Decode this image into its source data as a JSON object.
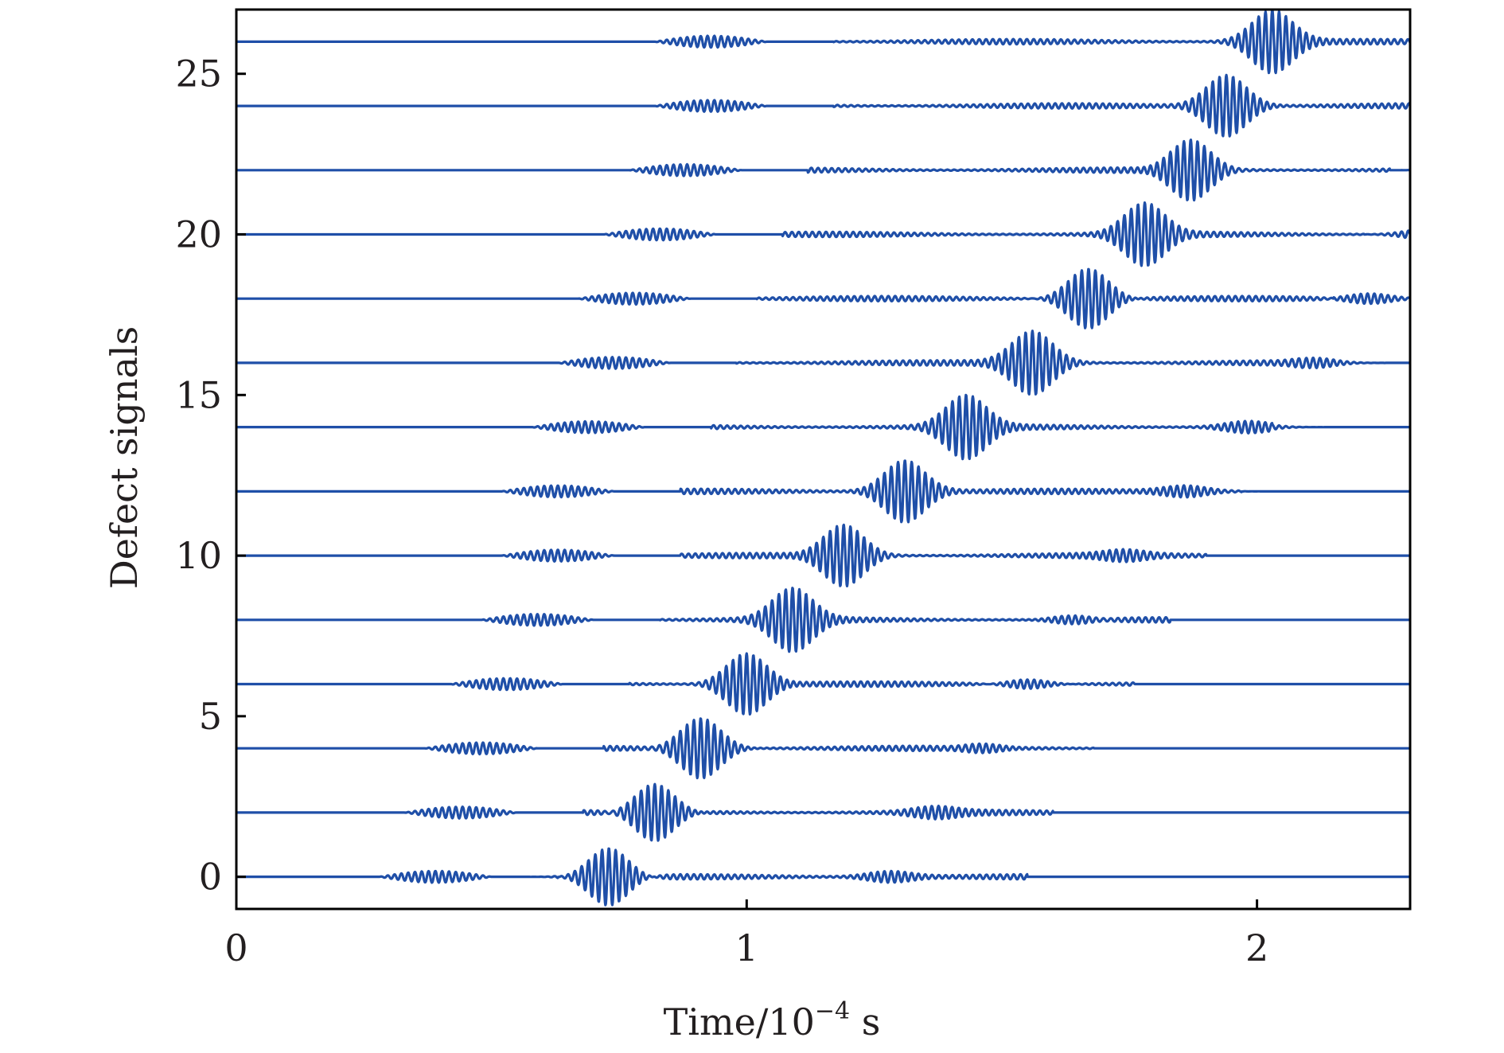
{
  "colors": {
    "trace": "#1f4fa8",
    "axis": "#000000",
    "text": "#231f20",
    "background": "#ffffff"
  },
  "chart_data": {
    "type": "line",
    "title": "",
    "xlabel": {
      "prefix": "Time/10",
      "exponent": "−4",
      "unit": " s"
    },
    "ylabel": "Defect signals",
    "xlim": [
      0,
      2.3
    ],
    "ylim": [
      -1,
      27
    ],
    "xticks": [
      0,
      1,
      2
    ],
    "xtick_labels": [
      "0",
      "1",
      "2"
    ],
    "yticks": [
      0,
      5,
      10,
      15,
      20,
      25
    ],
    "ytick_labels": [
      "0",
      "5",
      "10",
      "15",
      "20",
      "25"
    ],
    "grid": false,
    "legend": "none",
    "series": [
      {
        "offset": 0,
        "noise_start": 0.28,
        "main_center": 0.73,
        "echo_end": 1.55
      },
      {
        "offset": 2,
        "noise_start": 0.33,
        "main_center": 0.82,
        "echo_end": 1.6
      },
      {
        "offset": 4,
        "noise_start": 0.37,
        "main_center": 0.91,
        "echo_end": 1.68
      },
      {
        "offset": 6,
        "noise_start": 0.42,
        "main_center": 1.0,
        "echo_end": 1.76
      },
      {
        "offset": 8,
        "noise_start": 0.48,
        "main_center": 1.09,
        "echo_end": 1.83
      },
      {
        "offset": 10,
        "noise_start": 0.52,
        "main_center": 1.19,
        "echo_end": 1.9
      },
      {
        "offset": 12,
        "noise_start": 0.52,
        "main_center": 1.31,
        "echo_end": 1.97
      },
      {
        "offset": 14,
        "noise_start": 0.58,
        "main_center": 1.43,
        "echo_end": 2.03
      },
      {
        "offset": 16,
        "noise_start": 0.63,
        "main_center": 1.56,
        "echo_end": 2.09
      },
      {
        "offset": 18,
        "noise_start": 0.67,
        "main_center": 1.67,
        "echo_end": 2.15
      },
      {
        "offset": 20,
        "noise_start": 0.72,
        "main_center": 1.78,
        "echo_end": 2.21
      },
      {
        "offset": 22,
        "noise_start": 0.77,
        "main_center": 1.87,
        "echo_end": 2.26
      },
      {
        "offset": 24,
        "noise_start": 0.82,
        "main_center": 1.94,
        "echo_end": 2.3
      },
      {
        "offset": 26,
        "noise_start": 0.82,
        "main_center": 2.03,
        "echo_end": 2.3
      }
    ]
  }
}
